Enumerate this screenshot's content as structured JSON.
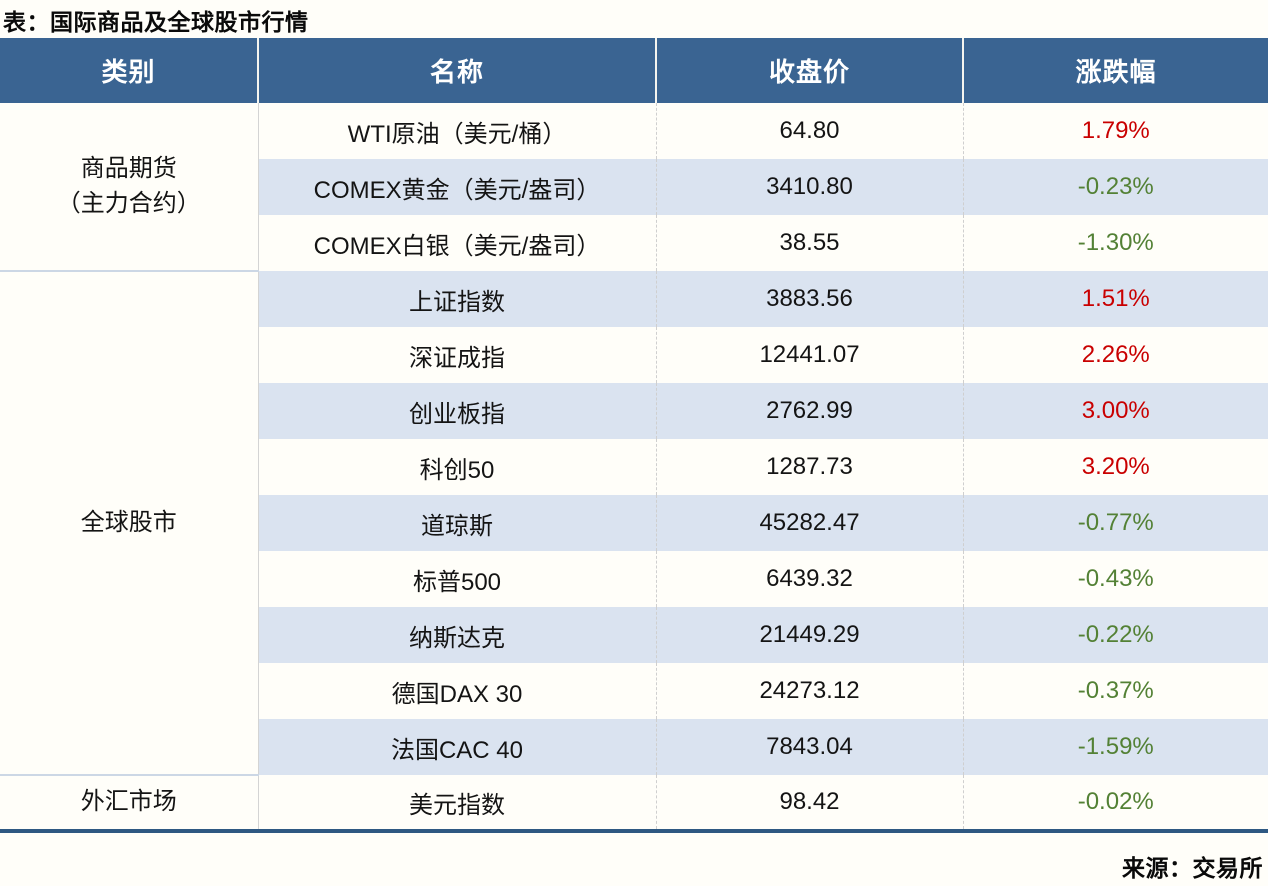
{
  "title": "表：国际商品及全球股市行情",
  "source": "来源：交易所",
  "colors": {
    "header-bg": "#3A6492",
    "header-text": "#FFFFFF",
    "band-bg": "#DAE3F0",
    "page-bg": "#FFFEF9",
    "up-color": "#C90000",
    "down-color": "#538135",
    "bottom-border": "#2E5882"
  },
  "table": {
    "headers": [
      "类别",
      "名称",
      "收盘价",
      "涨跌幅"
    ],
    "groups": [
      {
        "category": "商品期货\n（主力合约）",
        "rows": [
          {
            "name": "WTI原油（美元/桶）",
            "close": "64.80",
            "change": "1.79%",
            "direction": "up"
          },
          {
            "name": "COMEX黄金（美元/盎司）",
            "close": "3410.80",
            "change": "-0.23%",
            "direction": "down"
          },
          {
            "name": "COMEX白银（美元/盎司）",
            "close": "38.55",
            "change": "-1.30%",
            "direction": "down"
          }
        ]
      },
      {
        "category": "全球股市",
        "rows": [
          {
            "name": "上证指数",
            "close": "3883.56",
            "change": "1.51%",
            "direction": "up"
          },
          {
            "name": "深证成指",
            "close": "12441.07",
            "change": "2.26%",
            "direction": "up"
          },
          {
            "name": "创业板指",
            "close": "2762.99",
            "change": "3.00%",
            "direction": "up"
          },
          {
            "name": "科创50",
            "close": "1287.73",
            "change": "3.20%",
            "direction": "up"
          },
          {
            "name": "道琼斯",
            "close": "45282.47",
            "change": "-0.77%",
            "direction": "down"
          },
          {
            "name": "标普500",
            "close": "6439.32",
            "change": "-0.43%",
            "direction": "down"
          },
          {
            "name": "纳斯达克",
            "close": "21449.29",
            "change": "-0.22%",
            "direction": "down"
          },
          {
            "name": "德国DAX 30",
            "close": "24273.12",
            "change": "-0.37%",
            "direction": "down"
          },
          {
            "name": "法国CAC 40",
            "close": "7843.04",
            "change": "-1.59%",
            "direction": "down"
          }
        ]
      },
      {
        "category": "外汇市场",
        "rows": [
          {
            "name": "美元指数",
            "close": "98.42",
            "change": "-0.02%",
            "direction": "down"
          }
        ]
      }
    ]
  },
  "chart_data": {
    "type": "table",
    "title": "表：国际商品及全球股市行情",
    "columns": [
      "类别",
      "名称",
      "收盘价",
      "涨跌幅"
    ],
    "rows": [
      [
        "商品期货（主力合约）",
        "WTI原油（美元/桶）",
        64.8,
        "1.79%"
      ],
      [
        "商品期货（主力合约）",
        "COMEX黄金（美元/盎司）",
        3410.8,
        "-0.23%"
      ],
      [
        "商品期货（主力合约）",
        "COMEX白银（美元/盎司）",
        38.55,
        "-1.30%"
      ],
      [
        "全球股市",
        "上证指数",
        3883.56,
        "1.51%"
      ],
      [
        "全球股市",
        "深证成指",
        12441.07,
        "2.26%"
      ],
      [
        "全球股市",
        "创业板指",
        2762.99,
        "3.00%"
      ],
      [
        "全球股市",
        "科创50",
        1287.73,
        "3.20%"
      ],
      [
        "全球股市",
        "道琼斯",
        45282.47,
        "-0.77%"
      ],
      [
        "全球股市",
        "标普500",
        6439.32,
        "-0.43%"
      ],
      [
        "全球股市",
        "纳斯达克",
        21449.29,
        "-0.22%"
      ],
      [
        "全球股市",
        "德国DAX 30",
        24273.12,
        "-0.37%"
      ],
      [
        "全球股市",
        "法国CAC 40",
        7843.04,
        "-1.59%"
      ],
      [
        "外汇市场",
        "美元指数",
        98.42,
        "-0.02%"
      ]
    ],
    "notes": "positive change rendered red (#C90000), negative change rendered green (#538135)",
    "source": "来源：交易所"
  }
}
